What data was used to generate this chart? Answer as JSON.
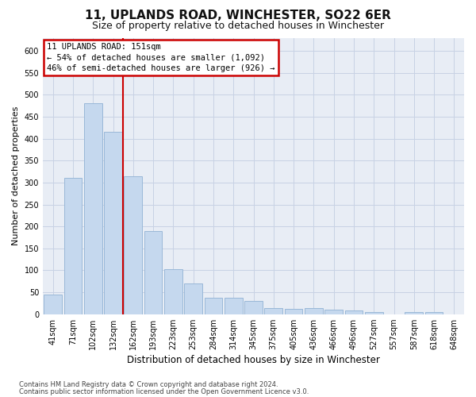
{
  "title": "11, UPLANDS ROAD, WINCHESTER, SO22 6ER",
  "subtitle": "Size of property relative to detached houses in Winchester",
  "xlabel": "Distribution of detached houses by size in Winchester",
  "ylabel": "Number of detached properties",
  "bar_labels": [
    "41sqm",
    "71sqm",
    "102sqm",
    "132sqm",
    "162sqm",
    "193sqm",
    "223sqm",
    "253sqm",
    "284sqm",
    "314sqm",
    "345sqm",
    "375sqm",
    "405sqm",
    "436sqm",
    "466sqm",
    "496sqm",
    "527sqm",
    "557sqm",
    "587sqm",
    "618sqm",
    "648sqm"
  ],
  "bar_values": [
    45,
    310,
    480,
    415,
    315,
    190,
    102,
    70,
    38,
    38,
    30,
    14,
    12,
    14,
    10,
    8,
    4,
    0,
    5,
    5,
    0
  ],
  "bar_color": "#c5d8ee",
  "bar_edge_color": "#9ab8d8",
  "red_line_color": "#cc0000",
  "red_line_x": 3.5,
  "annotation_line1": "11 UPLANDS ROAD: 151sqm",
  "annotation_line2": "← 54% of detached houses are smaller (1,092)",
  "annotation_line3": "46% of semi-detached houses are larger (926) →",
  "annotation_box_edge_color": "#cc0000",
  "background_color": "#ffffff",
  "plot_bg_color": "#e8edf5",
  "grid_color": "#c8d2e4",
  "footer_line1": "Contains HM Land Registry data © Crown copyright and database right 2024.",
  "footer_line2": "Contains public sector information licensed under the Open Government Licence v3.0.",
  "ylim": [
    0,
    630
  ],
  "yticks": [
    0,
    50,
    100,
    150,
    200,
    250,
    300,
    350,
    400,
    450,
    500,
    550,
    600
  ],
  "title_fontsize": 11,
  "subtitle_fontsize": 9,
  "ylabel_fontsize": 8,
  "xlabel_fontsize": 8.5,
  "tick_fontsize": 7,
  "annotation_fontsize": 7.5,
  "footer_fontsize": 6
}
